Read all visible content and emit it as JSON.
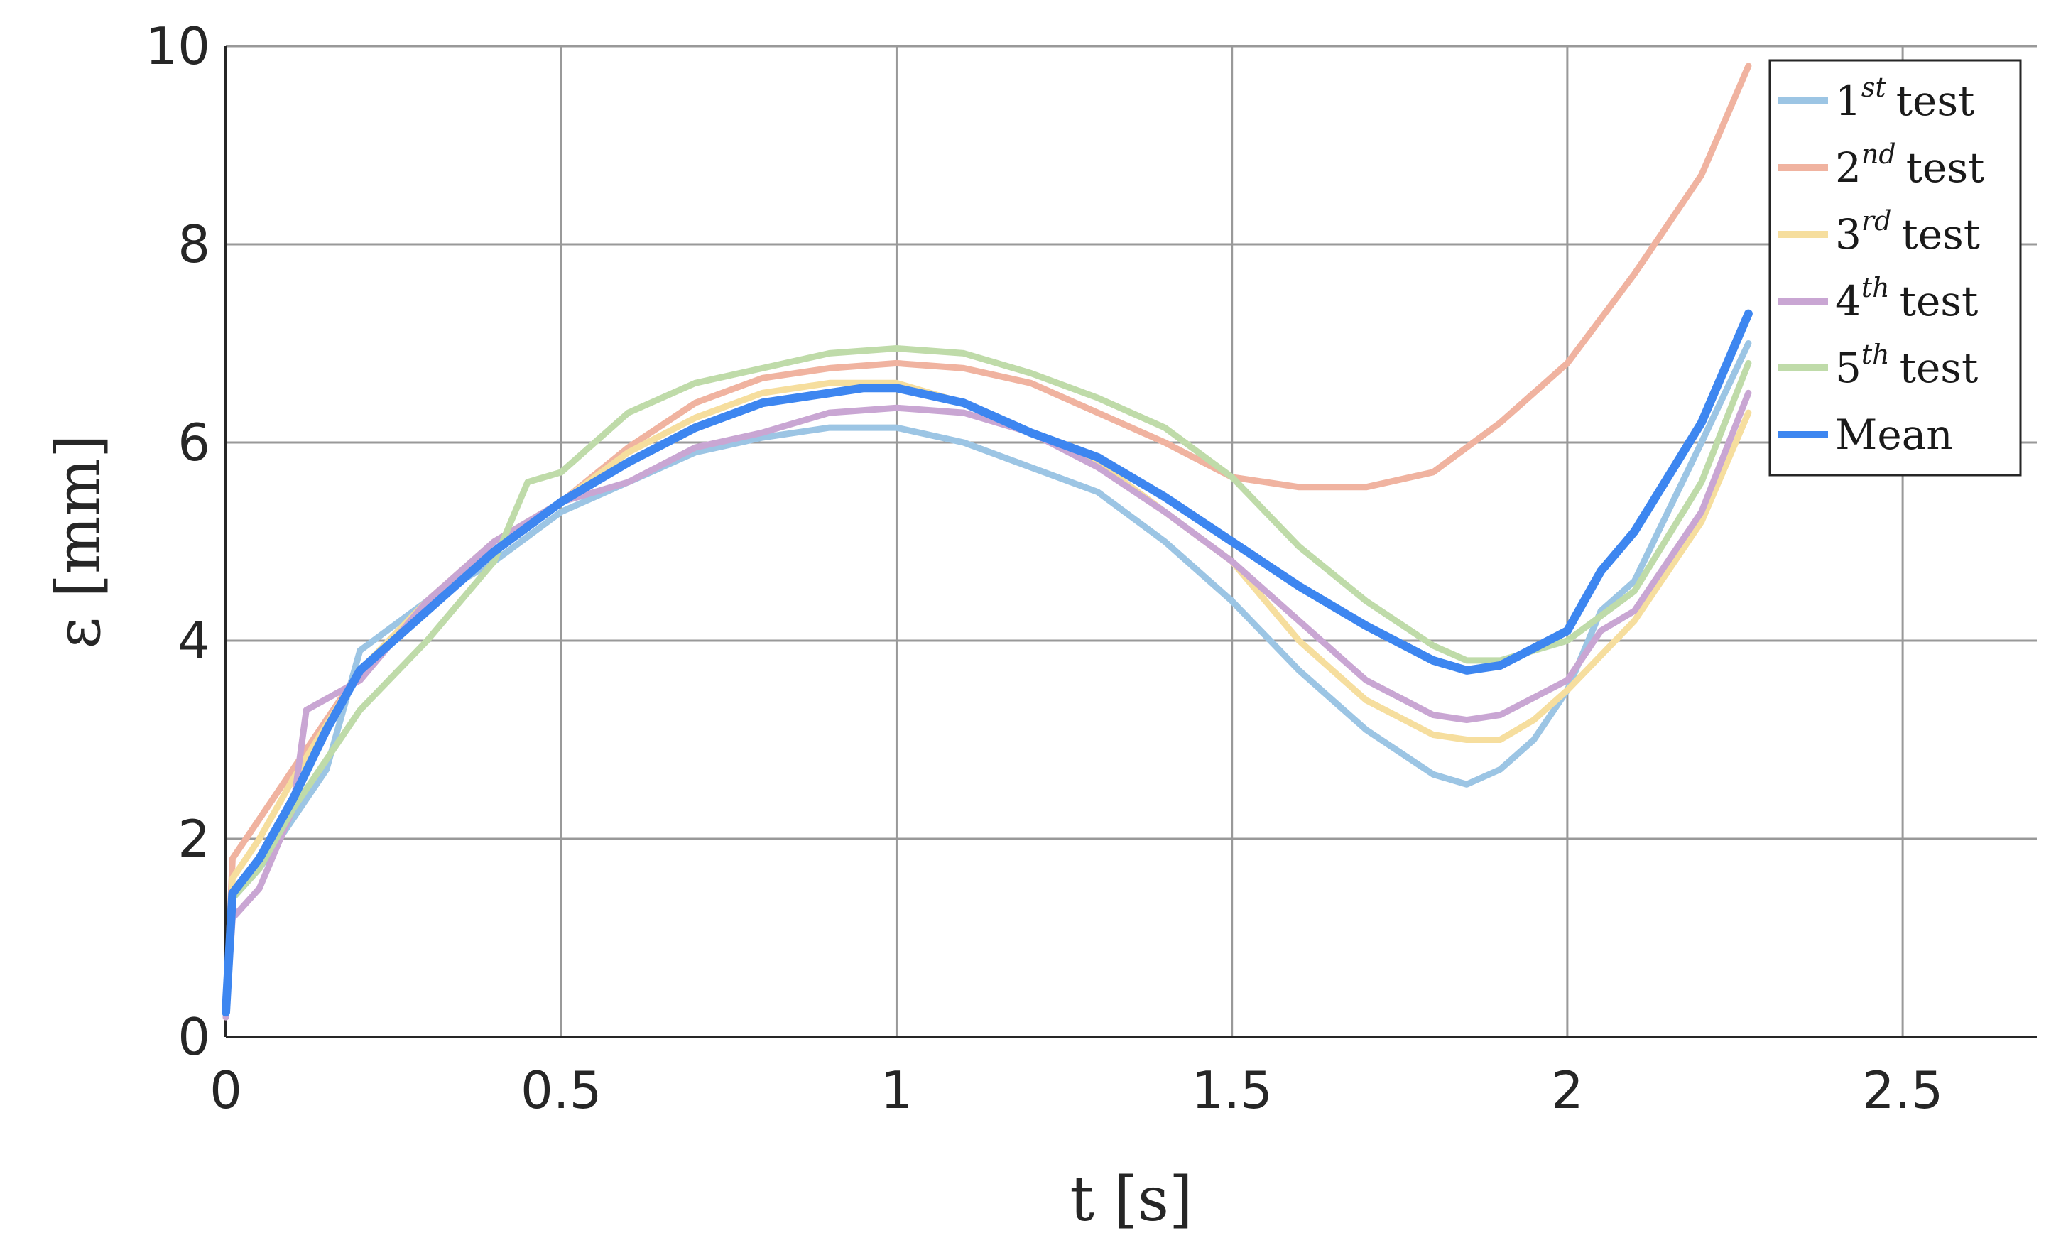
{
  "chart_data": {
    "type": "line",
    "xlabel": "t [s]",
    "ylabel": "ε [mm]",
    "xlim": [
      0,
      2.7
    ],
    "ylim": [
      0,
      10
    ],
    "xticks": [
      "0",
      "0.5",
      "1",
      "1.5",
      "2",
      "2.5"
    ],
    "yticks": [
      "0",
      "2",
      "4",
      "6",
      "8",
      "10"
    ],
    "grid": true,
    "legend_position": "top-right",
    "series": [
      {
        "name": "1st test",
        "legend": {
          "num": "1",
          "sup": "st",
          "word": "test"
        },
        "color": "#9CC5E4",
        "values": [
          [
            0,
            0.3
          ],
          [
            0.01,
            1.4
          ],
          [
            0.05,
            1.7
          ],
          [
            0.1,
            2.2
          ],
          [
            0.15,
            2.7
          ],
          [
            0.2,
            3.9
          ],
          [
            0.3,
            4.4
          ],
          [
            0.4,
            4.8
          ],
          [
            0.5,
            5.3
          ],
          [
            0.6,
            5.6
          ],
          [
            0.7,
            5.9
          ],
          [
            0.8,
            6.05
          ],
          [
            0.9,
            6.15
          ],
          [
            1.0,
            6.15
          ],
          [
            1.1,
            6.0
          ],
          [
            1.2,
            5.75
          ],
          [
            1.3,
            5.5
          ],
          [
            1.4,
            5.0
          ],
          [
            1.5,
            4.4
          ],
          [
            1.6,
            3.7
          ],
          [
            1.7,
            3.1
          ],
          [
            1.8,
            2.65
          ],
          [
            1.85,
            2.55
          ],
          [
            1.9,
            2.7
          ],
          [
            1.95,
            3.0
          ],
          [
            2.0,
            3.5
          ],
          [
            2.05,
            4.3
          ],
          [
            2.1,
            4.6
          ],
          [
            2.2,
            6.0
          ],
          [
            2.27,
            7.0
          ]
        ]
      },
      {
        "name": "2nd test",
        "legend": {
          "num": "2",
          "sup": "nd",
          "word": "test"
        },
        "color": "#F0B3A0",
        "values": [
          [
            0,
            0.2
          ],
          [
            0.01,
            1.8
          ],
          [
            0.05,
            2.2
          ],
          [
            0.1,
            2.7
          ],
          [
            0.2,
            3.7
          ],
          [
            0.3,
            4.3
          ],
          [
            0.4,
            4.9
          ],
          [
            0.5,
            5.4
          ],
          [
            0.6,
            5.95
          ],
          [
            0.7,
            6.4
          ],
          [
            0.8,
            6.65
          ],
          [
            0.9,
            6.75
          ],
          [
            1.0,
            6.8
          ],
          [
            1.1,
            6.75
          ],
          [
            1.2,
            6.6
          ],
          [
            1.3,
            6.3
          ],
          [
            1.4,
            6.0
          ],
          [
            1.5,
            5.65
          ],
          [
            1.6,
            5.55
          ],
          [
            1.7,
            5.55
          ],
          [
            1.8,
            5.7
          ],
          [
            1.9,
            6.2
          ],
          [
            2.0,
            6.8
          ],
          [
            2.1,
            7.7
          ],
          [
            2.2,
            8.7
          ],
          [
            2.27,
            9.8
          ]
        ]
      },
      {
        "name": "3rd test",
        "legend": {
          "num": "3",
          "sup": "rd",
          "word": "test"
        },
        "color": "#F6DE9E",
        "values": [
          [
            0,
            0.2
          ],
          [
            0.01,
            1.6
          ],
          [
            0.05,
            2.0
          ],
          [
            0.1,
            2.6
          ],
          [
            0.2,
            3.7
          ],
          [
            0.3,
            4.4
          ],
          [
            0.4,
            5.0
          ],
          [
            0.5,
            5.4
          ],
          [
            0.6,
            5.9
          ],
          [
            0.7,
            6.25
          ],
          [
            0.8,
            6.5
          ],
          [
            0.9,
            6.6
          ],
          [
            1.0,
            6.6
          ],
          [
            1.1,
            6.4
          ],
          [
            1.2,
            6.1
          ],
          [
            1.3,
            5.8
          ],
          [
            1.4,
            5.3
          ],
          [
            1.5,
            4.8
          ],
          [
            1.6,
            4.0
          ],
          [
            1.7,
            3.4
          ],
          [
            1.8,
            3.05
          ],
          [
            1.85,
            3.0
          ],
          [
            1.9,
            3.0
          ],
          [
            1.95,
            3.2
          ],
          [
            2.0,
            3.5
          ],
          [
            2.1,
            4.2
          ],
          [
            2.2,
            5.2
          ],
          [
            2.27,
            6.3
          ]
        ]
      },
      {
        "name": "4th test",
        "legend": {
          "num": "4",
          "sup": "th",
          "word": "test"
        },
        "color": "#C9A6D3",
        "values": [
          [
            0,
            0.2
          ],
          [
            0.01,
            1.2
          ],
          [
            0.05,
            1.5
          ],
          [
            0.1,
            2.3
          ],
          [
            0.12,
            3.3
          ],
          [
            0.2,
            3.6
          ],
          [
            0.3,
            4.4
          ],
          [
            0.4,
            5.0
          ],
          [
            0.5,
            5.4
          ],
          [
            0.6,
            5.6
          ],
          [
            0.7,
            5.95
          ],
          [
            0.8,
            6.1
          ],
          [
            0.9,
            6.3
          ],
          [
            1.0,
            6.35
          ],
          [
            1.1,
            6.3
          ],
          [
            1.2,
            6.1
          ],
          [
            1.3,
            5.75
          ],
          [
            1.4,
            5.3
          ],
          [
            1.5,
            4.8
          ],
          [
            1.6,
            4.2
          ],
          [
            1.7,
            3.6
          ],
          [
            1.8,
            3.25
          ],
          [
            1.85,
            3.2
          ],
          [
            1.9,
            3.25
          ],
          [
            2.0,
            3.6
          ],
          [
            2.05,
            4.1
          ],
          [
            2.1,
            4.3
          ],
          [
            2.2,
            5.3
          ],
          [
            2.27,
            6.5
          ]
        ]
      },
      {
        "name": "5th test",
        "legend": {
          "num": "5",
          "sup": "th",
          "word": "test"
        },
        "color": "#BFDBA9",
        "values": [
          [
            0,
            0.3
          ],
          [
            0.01,
            1.4
          ],
          [
            0.05,
            1.7
          ],
          [
            0.1,
            2.3
          ],
          [
            0.2,
            3.3
          ],
          [
            0.3,
            4.0
          ],
          [
            0.4,
            4.8
          ],
          [
            0.45,
            5.6
          ],
          [
            0.5,
            5.7
          ],
          [
            0.6,
            6.3
          ],
          [
            0.7,
            6.6
          ],
          [
            0.8,
            6.75
          ],
          [
            0.9,
            6.9
          ],
          [
            1.0,
            6.95
          ],
          [
            1.1,
            6.9
          ],
          [
            1.2,
            6.7
          ],
          [
            1.3,
            6.45
          ],
          [
            1.4,
            6.15
          ],
          [
            1.5,
            5.65
          ],
          [
            1.6,
            4.95
          ],
          [
            1.7,
            4.4
          ],
          [
            1.8,
            3.95
          ],
          [
            1.85,
            3.8
          ],
          [
            1.9,
            3.8
          ],
          [
            2.0,
            4.0
          ],
          [
            2.1,
            4.5
          ],
          [
            2.2,
            5.6
          ],
          [
            2.27,
            6.8
          ]
        ]
      },
      {
        "name": "Mean",
        "legend": {
          "num": "",
          "sup": "",
          "word": "Mean"
        },
        "color": "#3D86F0",
        "values": [
          [
            0,
            0.25
          ],
          [
            0.01,
            1.45
          ],
          [
            0.05,
            1.8
          ],
          [
            0.1,
            2.4
          ],
          [
            0.15,
            3.1
          ],
          [
            0.2,
            3.7
          ],
          [
            0.3,
            4.3
          ],
          [
            0.4,
            4.9
          ],
          [
            0.5,
            5.4
          ],
          [
            0.6,
            5.8
          ],
          [
            0.7,
            6.15
          ],
          [
            0.8,
            6.4
          ],
          [
            0.9,
            6.5
          ],
          [
            0.95,
            6.55
          ],
          [
            1.0,
            6.55
          ],
          [
            1.1,
            6.4
          ],
          [
            1.2,
            6.1
          ],
          [
            1.3,
            5.85
          ],
          [
            1.4,
            5.45
          ],
          [
            1.5,
            5.0
          ],
          [
            1.6,
            4.55
          ],
          [
            1.7,
            4.15
          ],
          [
            1.8,
            3.8
          ],
          [
            1.85,
            3.7
          ],
          [
            1.9,
            3.75
          ],
          [
            2.0,
            4.1
          ],
          [
            2.05,
            4.7
          ],
          [
            2.1,
            5.1
          ],
          [
            2.2,
            6.2
          ],
          [
            2.27,
            7.3
          ]
        ]
      }
    ]
  }
}
